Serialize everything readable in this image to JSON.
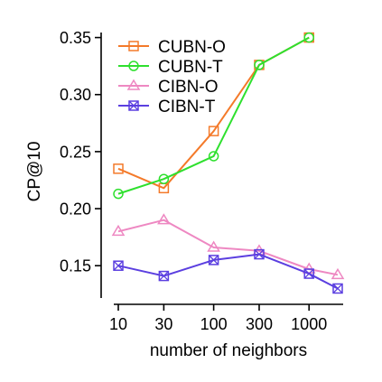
{
  "chart_data": {
    "type": "line",
    "title": "",
    "xlabel": "number of neighbors",
    "ylabel": "CP@10",
    "x_scale": "log",
    "x_ticks": [
      10,
      30,
      100,
      300,
      1000
    ],
    "x_tick_labels": [
      "10",
      "30",
      "100",
      "300",
      "1000"
    ],
    "y_ticks": [
      0.15,
      0.2,
      0.25,
      0.3,
      0.35
    ],
    "y_tick_labels": [
      "0.15",
      "0.20",
      "0.25",
      "0.30",
      "0.35"
    ],
    "ylim": [
      0.128,
      0.356
    ],
    "grid": false,
    "legend_position": "top-left",
    "series": [
      {
        "name": "CUBN-O",
        "color": "#F47A2A",
        "marker": "square",
        "x": [
          10,
          30,
          100,
          300,
          1000
        ],
        "y": [
          0.235,
          0.218,
          0.268,
          0.326,
          0.35
        ]
      },
      {
        "name": "CUBN-T",
        "color": "#2EE02E",
        "marker": "circle",
        "x": [
          10,
          30,
          100,
          300,
          1000
        ],
        "y": [
          0.213,
          0.226,
          0.246,
          0.326,
          0.35
        ]
      },
      {
        "name": "CIBN-O",
        "color": "#EE88C2",
        "marker": "triangle",
        "x": [
          10,
          30,
          100,
          300,
          1000,
          2000
        ],
        "y": [
          0.18,
          0.19,
          0.166,
          0.163,
          0.147,
          0.142
        ]
      },
      {
        "name": "CIBN-T",
        "color": "#5B3FE0",
        "marker": "box-x",
        "x": [
          10,
          30,
          100,
          300,
          1000,
          2000
        ],
        "y": [
          0.15,
          0.141,
          0.155,
          0.16,
          0.143,
          0.13
        ]
      }
    ]
  }
}
